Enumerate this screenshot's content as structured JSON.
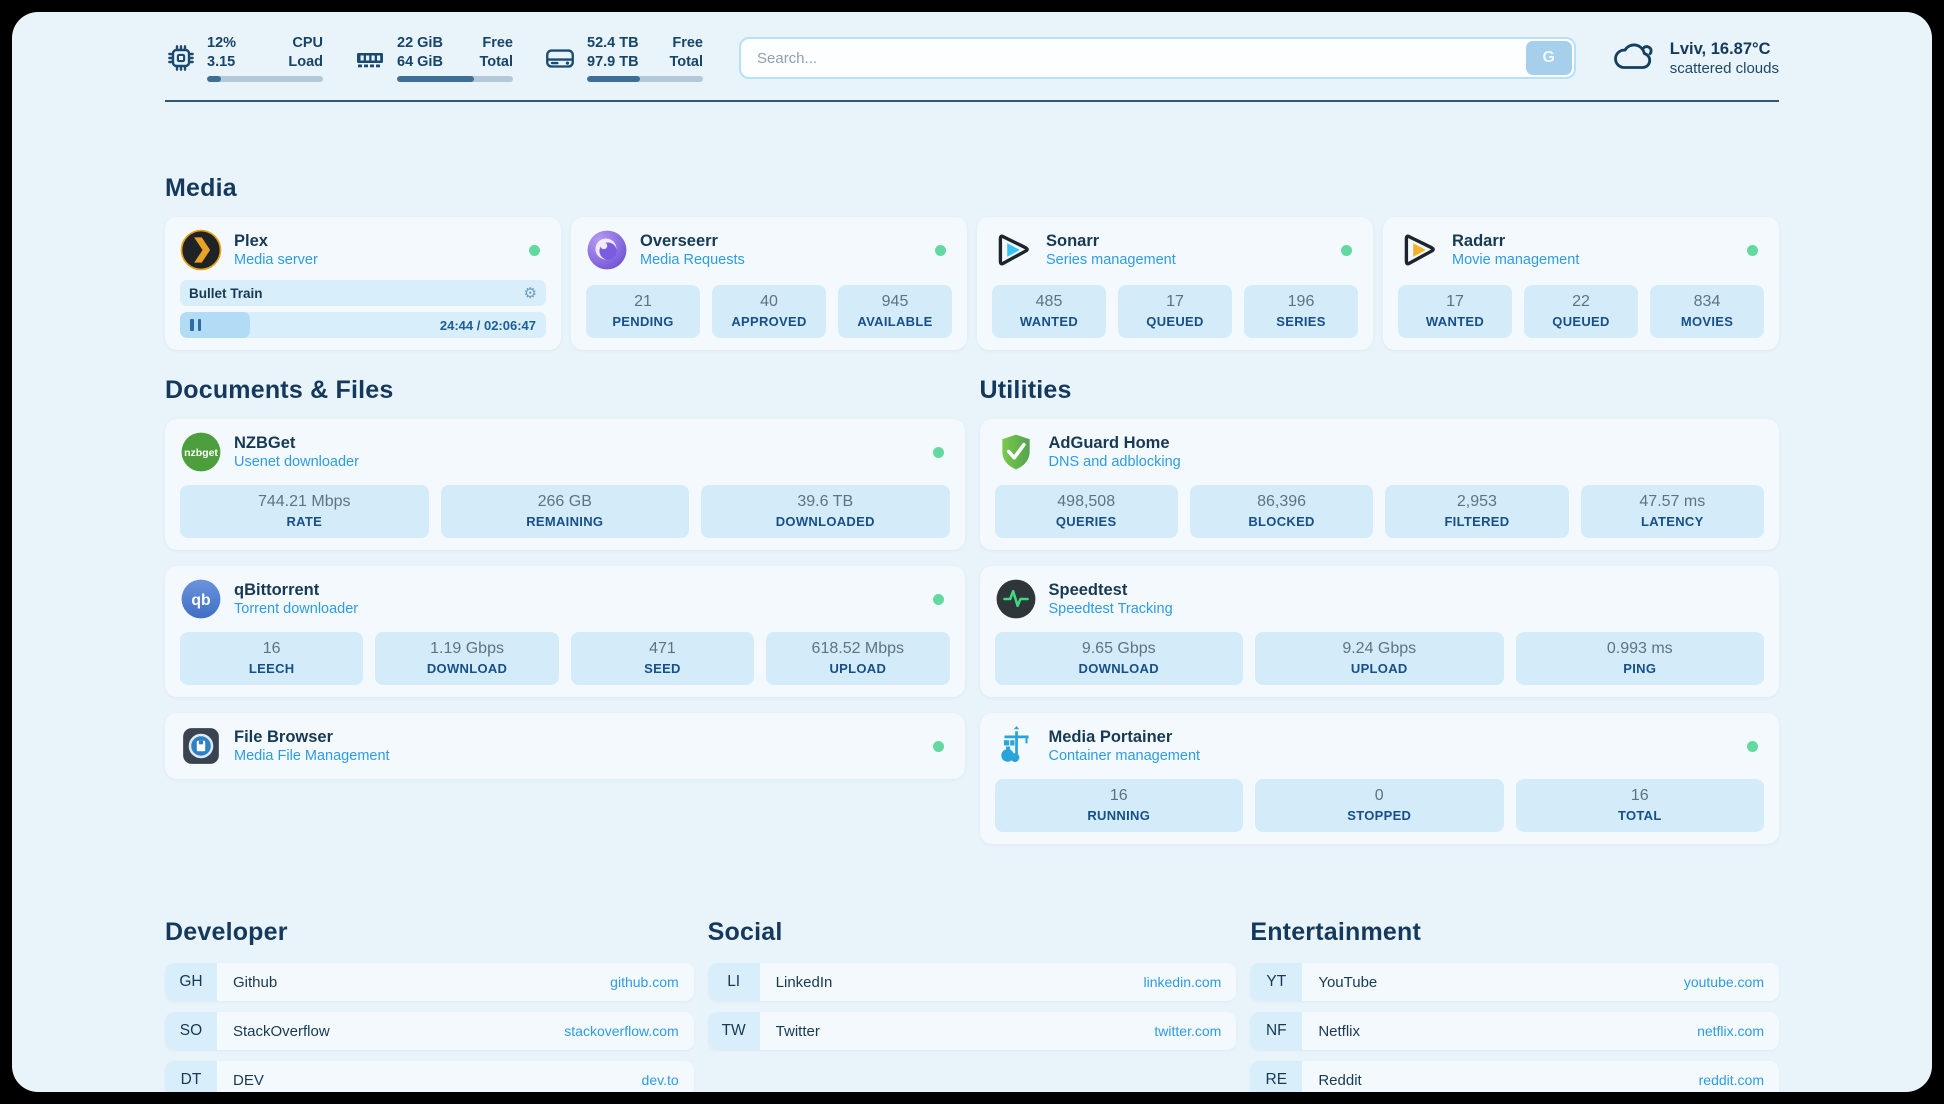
{
  "topbar": {
    "cpu": {
      "value_top": "12%",
      "value_bottom": "3.15",
      "label_top": "CPU",
      "label_bottom": "Load",
      "progress_pct": 12
    },
    "memory": {
      "value_top": "22 GiB",
      "value_bottom": "64 GiB",
      "label_top": "Free",
      "label_bottom": "Total",
      "progress_pct": 66
    },
    "disk": {
      "value_top": "52.4 TB",
      "value_bottom": "97.9 TB",
      "label_top": "Free",
      "label_bottom": "Total",
      "progress_pct": 46
    },
    "search": {
      "placeholder": "Search...",
      "button_label": "G"
    },
    "weather": {
      "location_temp": "Lviv, 16.87°C",
      "condition": "scattered clouds"
    }
  },
  "media": {
    "heading": "Media",
    "plex": {
      "name": "Plex",
      "description": "Media server",
      "now_playing": "Bullet Train",
      "elapsed_total": "24:44 / 02:06:47",
      "progress_pct": 19
    },
    "overseerr": {
      "name": "Overseerr",
      "description": "Media Requests",
      "stats": [
        {
          "value": "21",
          "label": "PENDING"
        },
        {
          "value": "40",
          "label": "APPROVED"
        },
        {
          "value": "945",
          "label": "AVAILABLE"
        }
      ]
    },
    "sonarr": {
      "name": "Sonarr",
      "description": "Series management",
      "stats": [
        {
          "value": "485",
          "label": "WANTED"
        },
        {
          "value": "17",
          "label": "QUEUED"
        },
        {
          "value": "196",
          "label": "SERIES"
        }
      ]
    },
    "radarr": {
      "name": "Radarr",
      "description": "Movie management",
      "stats": [
        {
          "value": "17",
          "label": "WANTED"
        },
        {
          "value": "22",
          "label": "QUEUED"
        },
        {
          "value": "834",
          "label": "MOVIES"
        }
      ]
    }
  },
  "documents": {
    "heading": "Documents & Files",
    "nzbget": {
      "name": "NZBGet",
      "description": "Usenet downloader",
      "stats": [
        {
          "value": "744.21 Mbps",
          "label": "RATE"
        },
        {
          "value": "266 GB",
          "label": "REMAINING"
        },
        {
          "value": "39.6 TB",
          "label": "DOWNLOADED"
        }
      ]
    },
    "qbittorrent": {
      "name": "qBittorrent",
      "description": "Torrent downloader",
      "stats": [
        {
          "value": "16",
          "label": "LEECH"
        },
        {
          "value": "1.19 Gbps",
          "label": "DOWNLOAD"
        },
        {
          "value": "471",
          "label": "SEED"
        },
        {
          "value": "618.52 Mbps",
          "label": "UPLOAD"
        }
      ]
    },
    "filebrowser": {
      "name": "File Browser",
      "description": "Media File Management"
    }
  },
  "utilities": {
    "heading": "Utilities",
    "adguard": {
      "name": "AdGuard Home",
      "description": "DNS and adblocking",
      "stats": [
        {
          "value": "498,508",
          "label": "QUERIES"
        },
        {
          "value": "86,396",
          "label": "BLOCKED"
        },
        {
          "value": "2,953",
          "label": "FILTERED"
        },
        {
          "value": "47.57 ms",
          "label": "LATENCY"
        }
      ]
    },
    "speedtest": {
      "name": "Speedtest",
      "description": "Speedtest Tracking",
      "stats": [
        {
          "value": "9.65 Gbps",
          "label": "DOWNLOAD"
        },
        {
          "value": "9.24 Gbps",
          "label": "UPLOAD"
        },
        {
          "value": "0.993 ms",
          "label": "PING"
        }
      ]
    },
    "portainer": {
      "name": "Media Portainer",
      "description": "Container management",
      "stats": [
        {
          "value": "16",
          "label": "RUNNING"
        },
        {
          "value": "0",
          "label": "STOPPED"
        },
        {
          "value": "16",
          "label": "TOTAL"
        }
      ]
    }
  },
  "bookmarks": [
    {
      "heading": "Developer",
      "items": [
        {
          "abbr": "GH",
          "name": "Github",
          "url": "github.com"
        },
        {
          "abbr": "SO",
          "name": "StackOverflow",
          "url": "stackoverflow.com"
        },
        {
          "abbr": "DT",
          "name": "DEV",
          "url": "dev.to"
        }
      ]
    },
    {
      "heading": "Social",
      "items": [
        {
          "abbr": "LI",
          "name": "LinkedIn",
          "url": "linkedin.com"
        },
        {
          "abbr": "TW",
          "name": "Twitter",
          "url": "twitter.com"
        }
      ]
    },
    {
      "heading": "Entertainment",
      "items": [
        {
          "abbr": "YT",
          "name": "YouTube",
          "url": "youtube.com"
        },
        {
          "abbr": "NF",
          "name": "Netflix",
          "url": "netflix.com"
        },
        {
          "abbr": "RE",
          "name": "Reddit",
          "url": "reddit.com"
        }
      ]
    }
  ],
  "colors": {
    "accent_blue": "#2d9ce6",
    "status_green": "#63d9a2",
    "navy": "#15395c"
  }
}
